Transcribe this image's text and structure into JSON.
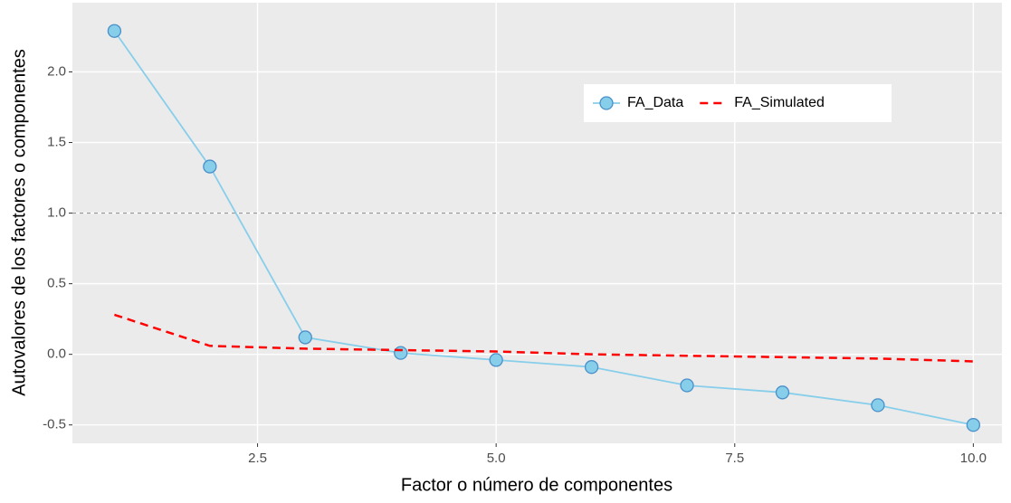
{
  "chart_data": {
    "type": "line",
    "x_label": "Factor o número de componentes",
    "y_label": "Autovalores de los factores o componentes",
    "x": [
      1,
      2,
      3,
      4,
      5,
      6,
      7,
      8,
      9,
      10
    ],
    "series": [
      {
        "name": "FA_Data",
        "color": "#87ceeb",
        "marker": true,
        "values": [
          2.29,
          1.33,
          0.12,
          0.01,
          -0.04,
          -0.09,
          -0.22,
          -0.27,
          -0.36,
          -0.5
        ]
      },
      {
        "name": "FA_Simulated",
        "color": "#ff0000",
        "dashed": true,
        "values": [
          0.28,
          0.06,
          0.04,
          0.03,
          0.02,
          0.0,
          -0.01,
          -0.02,
          -0.03,
          -0.05
        ]
      }
    ],
    "hline": 1,
    "xlim": [
      0.56,
      10.3
    ],
    "ylim": [
      -0.63,
      2.49
    ],
    "xticks": [
      2.5,
      {
        "value": 5,
        "label": "5.0"
      },
      7.5,
      {
        "value": 10,
        "label": "10.0"
      }
    ],
    "yticks": [
      -0.5,
      {
        "value": 0,
        "label": "0.0"
      },
      0.5,
      {
        "value": 1,
        "label": "1.0"
      },
      1.5,
      {
        "value": 2,
        "label": "2.0"
      }
    ],
    "grid": true,
    "legend": "inside"
  }
}
